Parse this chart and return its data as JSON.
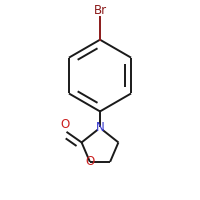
{
  "background_color": "#ffffff",
  "bond_color": "#1a1a1a",
  "N_color": "#3333cc",
  "O_color": "#cc2020",
  "Br_color": "#8b1a1a",
  "line_width": 1.4,
  "font_size": 8.5,
  "figsize": [
    2.0,
    2.0
  ],
  "dpi": 100,
  "N_label": "N",
  "O_label": "O",
  "Br_label": "Br",
  "O_ketone_label": "O"
}
